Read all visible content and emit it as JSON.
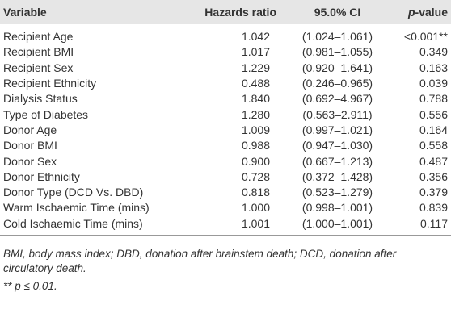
{
  "table": {
    "header": [
      "Variable",
      "Hazards ratio",
      "95.0% CI",
      [
        "p",
        "-value"
      ]
    ],
    "rows": [
      [
        "Recipient Age",
        "1.042",
        "(1.024–1.061)",
        "<0.001**"
      ],
      [
        "Recipient BMI",
        "1.017",
        "(0.981–1.055)",
        "0.349"
      ],
      [
        "Recipient Sex",
        "1.229",
        "(0.920–1.641)",
        "0.163"
      ],
      [
        "Recipient Ethnicity",
        "0.488",
        "(0.246–0.965)",
        "0.039"
      ],
      [
        "Dialysis Status",
        "1.840",
        "(0.692–4.967)",
        "0.788"
      ],
      [
        "Type of Diabetes",
        "1.280",
        "(0.563–2.911)",
        "0.556"
      ],
      [
        "Donor Age",
        "1.009",
        "(0.997–1.021)",
        "0.164"
      ],
      [
        "Donor BMI",
        "0.988",
        "(0.947–1.030)",
        "0.558"
      ],
      [
        "Donor Sex",
        "0.900",
        "(0.667–1.213)",
        "0.487"
      ],
      [
        "Donor Ethnicity",
        "0.728",
        "(0.372–1.428)",
        "0.356"
      ],
      [
        "Donor Type (DCD Vs. DBD)",
        "0.818",
        "(0.523–1.279)",
        "0.379"
      ],
      [
        "Warm Ischaemic Time (mins)",
        "1.000",
        "(0.998–1.001)",
        "0.839"
      ],
      [
        "Cold Ischaemic Time (mins)",
        "1.001",
        "(1.000–1.001)",
        "0.117"
      ]
    ]
  },
  "footnotes": [
    "BMI, body mass index; DBD, donation after brainstem death; DCD, donation after circulatory death.",
    "** p ≤ 0.01."
  ]
}
